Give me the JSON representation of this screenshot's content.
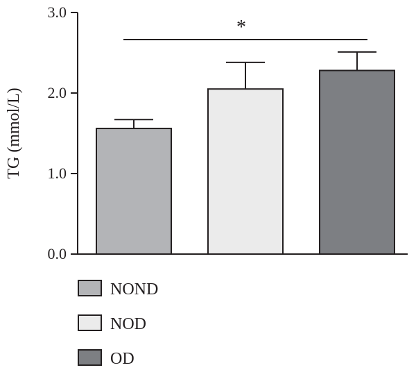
{
  "chart_data": {
    "type": "bar",
    "categories": [
      "NOND",
      "NOD",
      "OD"
    ],
    "values": [
      1.56,
      2.05,
      2.28
    ],
    "errors": [
      0.11,
      0.33,
      0.23
    ],
    "colors": [
      "#b3b4b7",
      "#ebebeb",
      "#7d7f83"
    ],
    "ylabel": "TG (mmol/L)",
    "ylim": [
      0,
      3
    ],
    "yticks": [
      "0.0",
      "1.0",
      "2.0",
      "3.0"
    ],
    "ytick_values": [
      0,
      1,
      2,
      3
    ],
    "legend": [
      "NOND",
      "NOD",
      "OD"
    ],
    "legend_position": "bottom-left",
    "grid": false,
    "significance": {
      "from": "NOND",
      "to": "OD",
      "label": "*"
    }
  }
}
